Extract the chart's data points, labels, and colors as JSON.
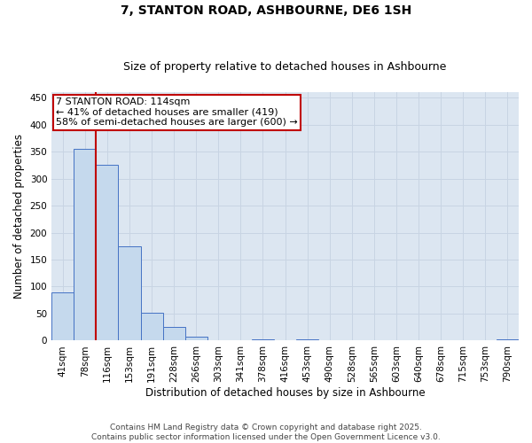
{
  "title_line1": "7, STANTON ROAD, ASHBOURNE, DE6 1SH",
  "title_line2": "Size of property relative to detached houses in Ashbourne",
  "xlabel": "Distribution of detached houses by size in Ashbourne",
  "ylabel": "Number of detached properties",
  "categories": [
    "41sqm",
    "78sqm",
    "116sqm",
    "153sqm",
    "191sqm",
    "228sqm",
    "266sqm",
    "303sqm",
    "341sqm",
    "378sqm",
    "416sqm",
    "453sqm",
    "490sqm",
    "528sqm",
    "565sqm",
    "603sqm",
    "640sqm",
    "678sqm",
    "715sqm",
    "753sqm",
    "790sqm"
  ],
  "values": [
    90,
    355,
    325,
    175,
    52,
    25,
    7,
    0,
    0,
    3,
    0,
    3,
    0,
    0,
    0,
    0,
    0,
    0,
    0,
    0,
    3
  ],
  "bar_color": "#c5d9ed",
  "bar_edge_color": "#4472c4",
  "grid_color": "#c8d4e3",
  "background_color": "#dce6f1",
  "vline_color": "#c00000",
  "vline_x_index": 1.5,
  "annotation_text": "7 STANTON ROAD: 114sqm\n← 41% of detached houses are smaller (419)\n58% of semi-detached houses are larger (600) →",
  "annotation_box_color": "#c00000",
  "ylim": [
    0,
    460
  ],
  "yticks": [
    0,
    50,
    100,
    150,
    200,
    250,
    300,
    350,
    400,
    450
  ],
  "footer": "Contains HM Land Registry data © Crown copyright and database right 2025.\nContains public sector information licensed under the Open Government Licence v3.0.",
  "title_fontsize": 10,
  "subtitle_fontsize": 9,
  "xlabel_fontsize": 8.5,
  "ylabel_fontsize": 8.5,
  "tick_fontsize": 7.5,
  "annot_fontsize": 8,
  "footer_fontsize": 6.5
}
